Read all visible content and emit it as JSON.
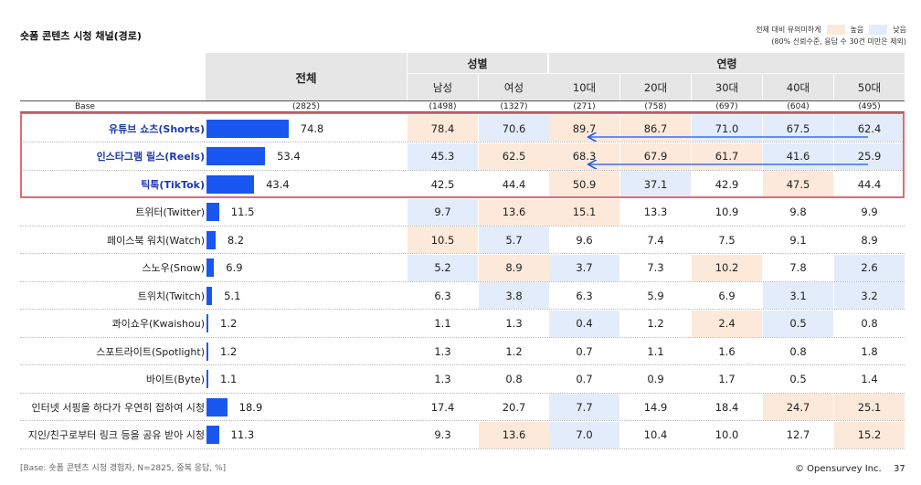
{
  "title": "숏폼 콘텐츠 시청 채널(경로)",
  "legend": {
    "note": "전체 대비 유의미하게",
    "high_label": "높음",
    "low_label": "낮음",
    "note2": "(80% 신뢰수준, 응답 수 30건 미만은 제외)",
    "colors": {
      "high": "#fde9d9",
      "low": "#e3ecfa"
    }
  },
  "header": {
    "total": "전체",
    "gender_group": "성별",
    "age_group": "연령",
    "columns": [
      "남성",
      "여성",
      "10대",
      "20대",
      "30대",
      "40대",
      "50대"
    ]
  },
  "base": {
    "label": "Base",
    "total": "(2825)",
    "columns": [
      "(1498)",
      "(1327)",
      "(271)",
      "(758)",
      "(697)",
      "(604)",
      "(495)"
    ]
  },
  "chart_data": {
    "type": "bar",
    "categories": [
      "유튜브 쇼츠(Shorts)",
      "인스타그램 릴스(Reels)",
      "틱톡(TikTok)",
      "트위터(Twitter)",
      "페이스북 워치(Watch)",
      "스노우(Snow)",
      "트위치(Twitch)",
      "콰이쇼우(Kwaishou)",
      "스포트라이트(Spotlight)",
      "바이트(Byte)",
      "인터넷 서핑을 하다가 우연히 접하여 시청",
      "지인/친구로부터 링크 등을 공유 받아 시청"
    ],
    "values": [
      74.8,
      53.4,
      43.4,
      11.5,
      8.2,
      6.9,
      5.1,
      1.2,
      1.2,
      1.1,
      18.9,
      11.3
    ],
    "columns": [
      "남성",
      "여성",
      "10대",
      "20대",
      "30대",
      "40대",
      "50대"
    ],
    "table": [
      [
        78.4,
        70.6,
        89.7,
        86.7,
        71.0,
        67.5,
        62.4
      ],
      [
        45.3,
        62.5,
        68.3,
        67.9,
        61.7,
        41.6,
        25.9
      ],
      [
        42.5,
        44.4,
        50.9,
        37.1,
        42.9,
        47.5,
        44.4
      ],
      [
        9.7,
        13.6,
        15.1,
        13.3,
        10.9,
        9.8,
        9.9
      ],
      [
        10.5,
        5.7,
        9.6,
        7.4,
        7.5,
        9.1,
        8.9
      ],
      [
        5.2,
        8.9,
        3.7,
        7.3,
        10.2,
        7.8,
        2.6
      ],
      [
        6.3,
        3.8,
        6.3,
        5.9,
        6.9,
        3.1,
        3.2
      ],
      [
        1.1,
        1.3,
        0.4,
        1.2,
        2.4,
        0.5,
        0.8
      ],
      [
        1.3,
        1.2,
        0.7,
        1.1,
        1.6,
        0.8,
        1.8
      ],
      [
        1.3,
        0.8,
        0.7,
        0.9,
        1.7,
        0.5,
        1.4
      ],
      [
        17.4,
        20.7,
        7.7,
        14.9,
        18.4,
        24.7,
        25.1
      ],
      [
        9.3,
        13.6,
        7.0,
        10.4,
        10.0,
        12.7,
        15.2
      ]
    ],
    "significance": [
      [
        "high",
        "low",
        "high",
        "high",
        "low",
        "low",
        "low"
      ],
      [
        "low",
        "high",
        "high",
        "high",
        "high",
        "low",
        "low"
      ],
      [
        "",
        "",
        "high",
        "low",
        "",
        "high",
        ""
      ],
      [
        "low",
        "high",
        "high",
        "",
        "",
        "",
        ""
      ],
      [
        "high",
        "low",
        "",
        "",
        "",
        "",
        ""
      ],
      [
        "low",
        "high",
        "low",
        "",
        "high",
        "",
        "low"
      ],
      [
        "",
        "low",
        "",
        "",
        "",
        "low",
        "low"
      ],
      [
        "",
        "",
        "low",
        "",
        "high",
        "low",
        ""
      ],
      [
        "",
        "",
        "",
        "",
        "",
        "",
        ""
      ],
      [
        "",
        "",
        "",
        "",
        "",
        "",
        ""
      ],
      [
        "",
        "",
        "low",
        "",
        "",
        "high",
        "high"
      ],
      [
        "",
        "high",
        "low",
        "",
        "",
        "",
        "high"
      ]
    ],
    "highlighted_rows": [
      0,
      1,
      2
    ],
    "ylim": [
      0,
      100
    ],
    "bar_color": "#1a56f0"
  },
  "footnote": "[Base: 숏폼 콘텐츠 시청 경험자, N=2825, 중복 응답, %]",
  "brand": "© Opensurvey Inc.",
  "page_number": "37"
}
